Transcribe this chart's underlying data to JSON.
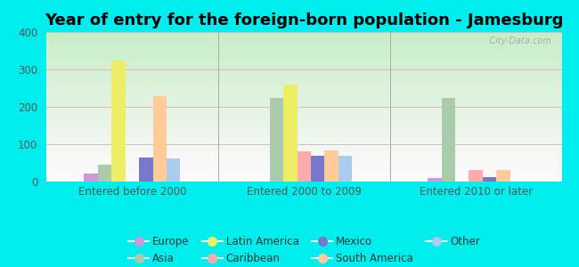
{
  "title": "Year of entry for the foreign-born population - Jamesburg",
  "background_outer": "#00eeee",
  "background_inner_top": "#c8e6c9",
  "background_inner_bottom": "#f0faf0",
  "categories": [
    "Entered before 2000",
    "Entered 2000 to 2009",
    "Entered 2010 or later"
  ],
  "series": [
    {
      "label": "Europe",
      "color": "#cc99dd",
      "values": [
        22,
        0,
        10
      ]
    },
    {
      "label": "Asia",
      "color": "#aaccaa",
      "values": [
        45,
        225,
        225
      ]
    },
    {
      "label": "Latin America",
      "color": "#eeee66",
      "values": [
        325,
        260,
        0
      ]
    },
    {
      "label": "Caribbean",
      "color": "#ffaaaa",
      "values": [
        0,
        80,
        30
      ]
    },
    {
      "label": "Mexico",
      "color": "#7777cc",
      "values": [
        65,
        70,
        12
      ]
    },
    {
      "label": "South America",
      "color": "#ffcc99",
      "values": [
        228,
        83,
        30
      ]
    },
    {
      "label": "Other",
      "color": "#aaccee",
      "values": [
        63,
        70,
        0
      ]
    }
  ],
  "ylim": [
    0,
    400
  ],
  "yticks": [
    0,
    100,
    200,
    300,
    400
  ],
  "watermark": "  City-Data.com",
  "title_fontsize": 13,
  "tick_fontsize": 8.5,
  "legend_fontsize": 8.5,
  "legend_order": [
    0,
    1,
    2,
    3,
    4,
    5,
    6
  ]
}
